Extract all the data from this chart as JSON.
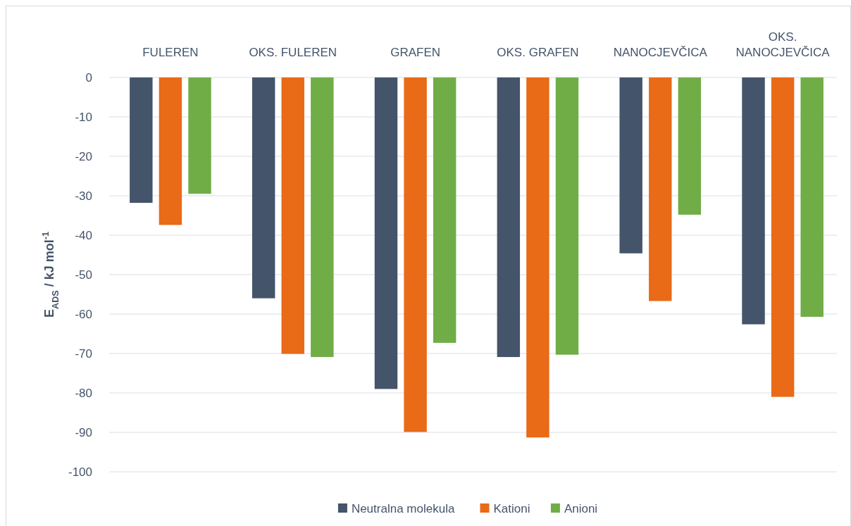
{
  "chart_data": {
    "type": "bar",
    "ylabel": "E$_{ADS}$ / kJ mol$^{-1}$",
    "categories": [
      "FULEREN",
      "OKS. FULEREN",
      "GRAFEN",
      "OKS. GRAFEN",
      "NANOCJEVČICA",
      "OKS. NANOCJEVČICA"
    ],
    "series": [
      {
        "name": "Neutralna molekula",
        "color": "#44546a",
        "values": [
          -31.8,
          -56,
          -79,
          -70.9,
          -44.6,
          -62.6
        ]
      },
      {
        "name": "Kationi",
        "color": "#e96a17",
        "values": [
          -37.4,
          -70.1,
          -89.9,
          -91.3,
          -56.7,
          -81
        ]
      },
      {
        "name": "Anioni",
        "color": "#70ad47",
        "values": [
          -29.5,
          -70.9,
          -67.3,
          -70.3,
          -34.8,
          -60.7
        ]
      }
    ],
    "ylim": [
      -100,
      0
    ],
    "yticks": [
      0,
      -10,
      -20,
      -30,
      -40,
      -50,
      -60,
      -70,
      -80,
      -90,
      -100
    ],
    "grid": "y",
    "legend": "bottom"
  }
}
